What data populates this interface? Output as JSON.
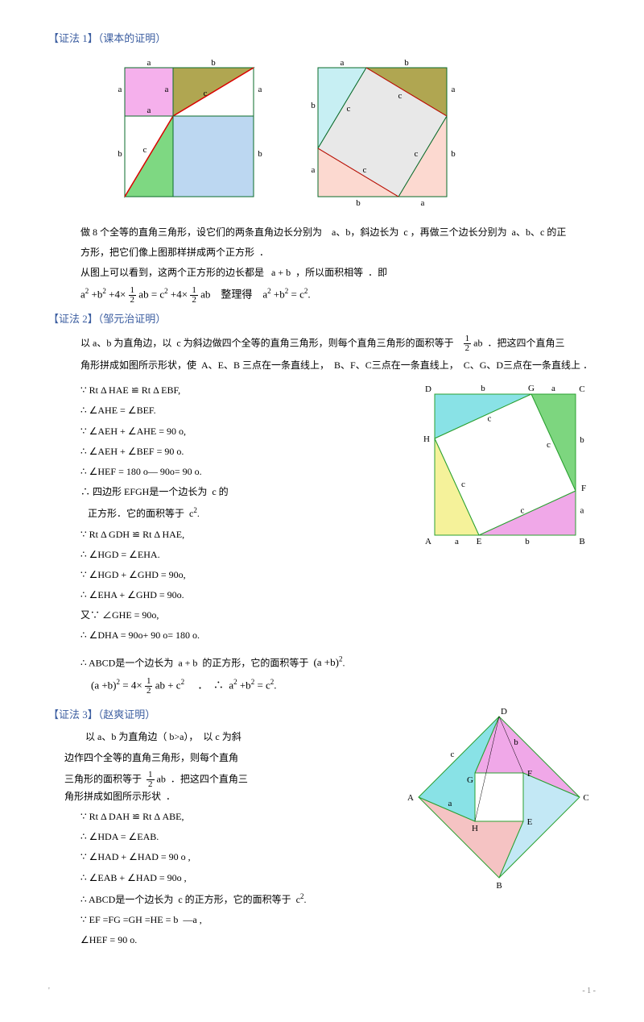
{
  "p1_title": "【证法 1】（课本的证明）",
  "p1_text1": "做 8 个全等的直角三角形，设它们的两条直角边长分别为",
  "p1_text1b": "a、b，斜边长为",
  "p1_text1c": "c ，再做三个边长分别为",
  "p1_text1d": "a、b、c 的正",
  "p1_text2": "方形，把它们像上图那样拼成两个正方形",
  "p1_text2b": "．",
  "p1_text3": "从图上可以看到，这两个正方形的边长都是",
  "p1_text3b": "a + b",
  "p1_text3c": "，所以面积相等",
  "p1_text3d": "．即",
  "p1_eq1_l": "a",
  "p1_eq1_r": "整理得",
  "p2_title": "【证法 2】（邹元治证明）",
  "p2_t1": "以 a、b 为直角边，以",
  "p2_t1b": "c 为斜边做四个全等的直角三角形，则每个直角三角形的面积等于",
  "p2_t1c": "．把这四个直角三",
  "p2_t2": "角形拼成如图所示形状，使",
  "p2_t2b": "A、E、B 三点在一条直线上，",
  "p2_t2c": "B、F、C三点在一条直线上，",
  "p2_t2d": "C、G、D三点在一条直线上",
  "p2_t2e": "．",
  "p2_s1": "∵ Rt Δ HAE ≌ Rt Δ EBF,",
  "p2_s2": "∴ ∠AHE = ∠BEF.",
  "p2_s3": "∵ ∠AEH + ∠AHE = 90 o,",
  "p2_s4": "∴ ∠AEH + ∠BEF = 90 o.",
  "p2_s5": "∴ ∠HEF = 180 o— 90o= 90 o.",
  "p2_s6": "∴ 四边形 EFGH是一个边长为",
  "p2_s6b": "c 的",
  "p2_s7": "正方形．它的面积等于",
  "p2_s7b": "c",
  "p2_s8": "∵ Rt Δ GDH ≌ Rt Δ HAE,",
  "p2_s9": "∴ ∠HGD = ∠EHA.",
  "p2_s10": "∵ ∠HGD + ∠GHD = 90o,",
  "p2_s11": "∴ ∠EHA + ∠GHD = 90o.",
  "p2_s12": "又∵ ∠GHE = 90o,",
  "p2_s13": "∴ ∠DHA = 90o+ 90 o= 180 o.",
  "p2_s14": "∴ ABCD是一个边长为",
  "p2_s14b": "a + b",
  "p2_s14c": "的正方形，它的面积等于",
  "p3_title": "【证法 3】（赵爽证明）",
  "p3_t1": "以 a、b 为直角边（ b>a），",
  "p3_t1b": "以 c 为斜",
  "p3_t2": "边作四个全等的直角三角形，则每个直角",
  "p3_t3": "三角形的面积等于",
  "p3_t3b": "．把这四个直角三",
  "p3_t4": "角形拼成如图所示形状",
  "p3_t4b": "．",
  "p3_s1": "∵ Rt Δ DAH ≌ Rt Δ ABE,",
  "p3_s2": "∴ ∠HDA = ∠EAB.",
  "p3_s3": "∵ ∠HAD + ∠HAD = 90 o ,",
  "p3_s4": "∴ ∠EAB + ∠HAD = 90o ,",
  "p3_s5": "∴ ABCD是一个边长为",
  "p3_s5b": "c 的正方形，它的面积等于",
  "p3_s5c": "c",
  "p3_s6": "∵ EF =FG =GH =HE = b",
  "p3_s6b": "—a ,",
  "p3_s7": "∠HEF = 90 o.",
  "pg": "- 1 -",
  "fig1": {
    "size": 200,
    "a": 60,
    "b": 100,
    "colors": {
      "sq_a": "#f5b0ec",
      "sq_b": "#bcd7f1",
      "tri_tr": "#b0a651",
      "tri_bl": "#7ed882",
      "stroke": "#0a6b2a",
      "hyp": "#d00"
    }
  },
  "fig2": {
    "size": 200,
    "a": 60,
    "b": 100,
    "colors": {
      "center": "#e8e8e8",
      "tl": "#b0a651",
      "tr": "#c7eff3",
      "br": "#fcd9d0",
      "bl": "#c7eff3",
      "tl2": "#c7eff3",
      "bl2": "#fcd9d0",
      "stroke": "#0a6b2a",
      "hyp": "#d00"
    }
  },
  "fig3": {
    "size": 200,
    "a": 55,
    "b": 120,
    "labels": {
      "A": "A",
      "B": "B",
      "C": "C",
      "D": "D",
      "E": "E",
      "F": "F",
      "G": "G",
      "H": "H"
    },
    "colors": {
      "tl": "#89e2e6",
      "tr": "#7dd67f",
      "br": "#f0a8e8",
      "bl": "#f5f29a",
      "center": "#fff",
      "stroke": "#2aa030"
    }
  },
  "fig4": {
    "size": 220,
    "c": 100,
    "inner": 30,
    "labels": {
      "A": "A",
      "B": "B",
      "C": "C",
      "D": "D",
      "E": "E",
      "F": "F",
      "G": "G",
      "H": "H"
    },
    "colors": {
      "top": "#f0a8e8",
      "right": "#c3e8f5",
      "bottom": "#f5c3c3",
      "left": "#89e2e6",
      "center": "#fff",
      "stroke": "#2aa030"
    }
  }
}
